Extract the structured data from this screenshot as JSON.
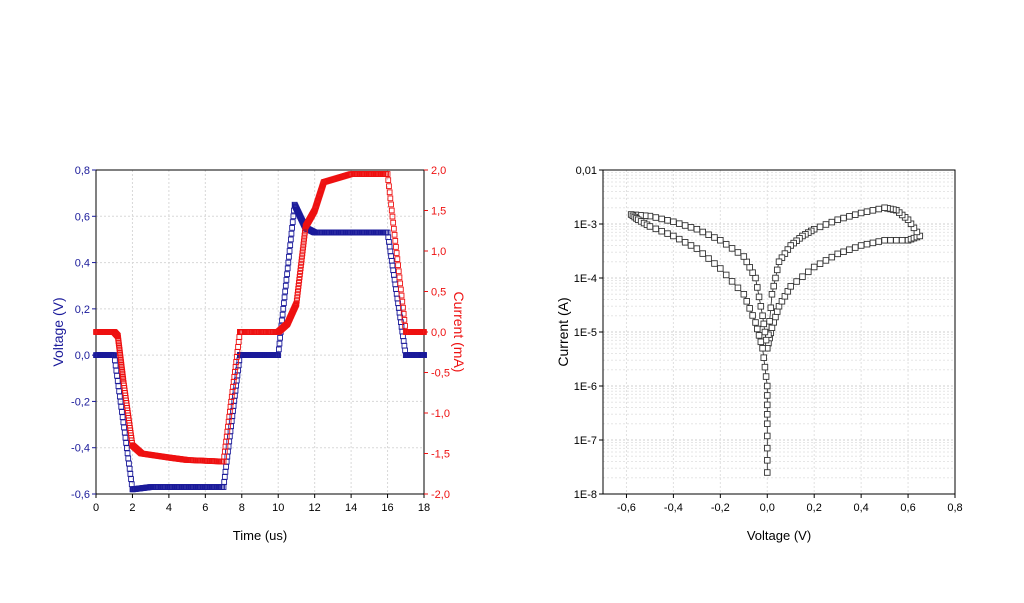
{
  "chart_data": [
    {
      "type": "scatter",
      "title": "",
      "xlabel": "Time (us)",
      "ylabel": "Voltage (V)",
      "y2label": "Current (mA)",
      "xlim": [
        0,
        18
      ],
      "ylim": [
        -0.6,
        0.8
      ],
      "y2lim": [
        -2.0,
        2.0
      ],
      "grid": true,
      "legend": "none",
      "xticks": [
        "0",
        "2",
        "4",
        "6",
        "8",
        "10",
        "12",
        "14",
        "16",
        "18"
      ],
      "yticks": [
        "-0,6",
        "-0,4",
        "-0,2",
        "0,0",
        "0,2",
        "0,4",
        "0,6",
        "0,8"
      ],
      "y2ticks": [
        "-2,0",
        "-1,5",
        "-1,0",
        "-0,5",
        "0,0",
        "0,5",
        "1,0",
        "1,5",
        "2,0"
      ],
      "colors": {
        "voltage": "#1a1a9a",
        "current": "#ee1111"
      },
      "series": [
        {
          "axis": "left",
          "marker": "open-square",
          "x": [
            0,
            1,
            2,
            3,
            5,
            7,
            7.9,
            8,
            9,
            10,
            10.9,
            11.5,
            12,
            14,
            16,
            17,
            17.9,
            18
          ],
          "y": [
            0.0,
            0.0,
            -0.58,
            -0.57,
            -0.57,
            -0.57,
            0.0,
            0.0,
            0.0,
            0.0,
            0.65,
            0.55,
            0.53,
            0.53,
            0.53,
            0.0,
            0.0,
            0.0
          ]
        },
        {
          "axis": "right",
          "marker": "open-square",
          "x": [
            0,
            1,
            1.2,
            1.5,
            2,
            2.5,
            4,
            5,
            7,
            7.9,
            8,
            10,
            10.5,
            11,
            11.5,
            12,
            12.5,
            14,
            16,
            17,
            18
          ],
          "y": [
            0.0,
            0.0,
            -0.05,
            -0.6,
            -1.4,
            -1.5,
            -1.55,
            -1.58,
            -1.6,
            0.0,
            0.0,
            0.0,
            0.1,
            0.35,
            1.3,
            1.5,
            1.85,
            1.95,
            1.95,
            0.0,
            0.0
          ]
        }
      ]
    },
    {
      "type": "scatter",
      "title": "",
      "xlabel": "Voltage (V)",
      "ylabel": "Current (A)",
      "xlim": [
        -0.7,
        0.8
      ],
      "ylim": [
        1e-08,
        0.01
      ],
      "yscale": "log",
      "grid": true,
      "legend": "none",
      "xticks": [
        "-0,6",
        "-0,4",
        "-0,2",
        "0,0",
        "0,2",
        "0,4",
        "0,6",
        "0,8"
      ],
      "yticks": [
        "1E-8",
        "1E-7",
        "1E-6",
        "1E-5",
        "1E-4",
        "1E-3",
        "0,01"
      ],
      "colors": {
        "markers": "#333333"
      },
      "series": [
        {
          "marker": "open-square",
          "x": [
            0.0,
            0.02,
            0.05,
            0.1,
            0.2,
            0.3,
            0.4,
            0.5,
            0.6,
            0.65,
            0.6,
            0.55,
            0.5,
            0.4,
            0.3,
            0.2,
            0.15,
            0.1,
            0.05,
            0.02,
            0.0,
            -0.02,
            -0.05,
            -0.1,
            -0.2,
            -0.3,
            -0.4,
            -0.5,
            -0.58,
            -0.55,
            -0.5,
            -0.4,
            -0.3,
            -0.2,
            -0.1,
            -0.05,
            -0.02,
            0.0,
            0.0,
            0.0
          ],
          "y": [
            5e-06,
            1.2e-05,
            3e-05,
            7e-05,
            0.00016,
            0.00028,
            0.0004,
            0.0005,
            0.0005,
            0.0006,
            0.0012,
            0.0018,
            0.002,
            0.0016,
            0.0012,
            0.0008,
            0.0006,
            0.0004,
            0.0002,
            5e-05,
            5e-06,
            2e-05,
            0.0001,
            0.00025,
            0.0005,
            0.0008,
            0.0011,
            0.0014,
            0.0015,
            0.0012,
            0.0009,
            0.0006,
            0.00035,
            0.00015,
            5e-05,
            1.5e-05,
            5e-06,
            1e-06,
            2e-07,
            2.5e-08
          ]
        }
      ]
    }
  ]
}
